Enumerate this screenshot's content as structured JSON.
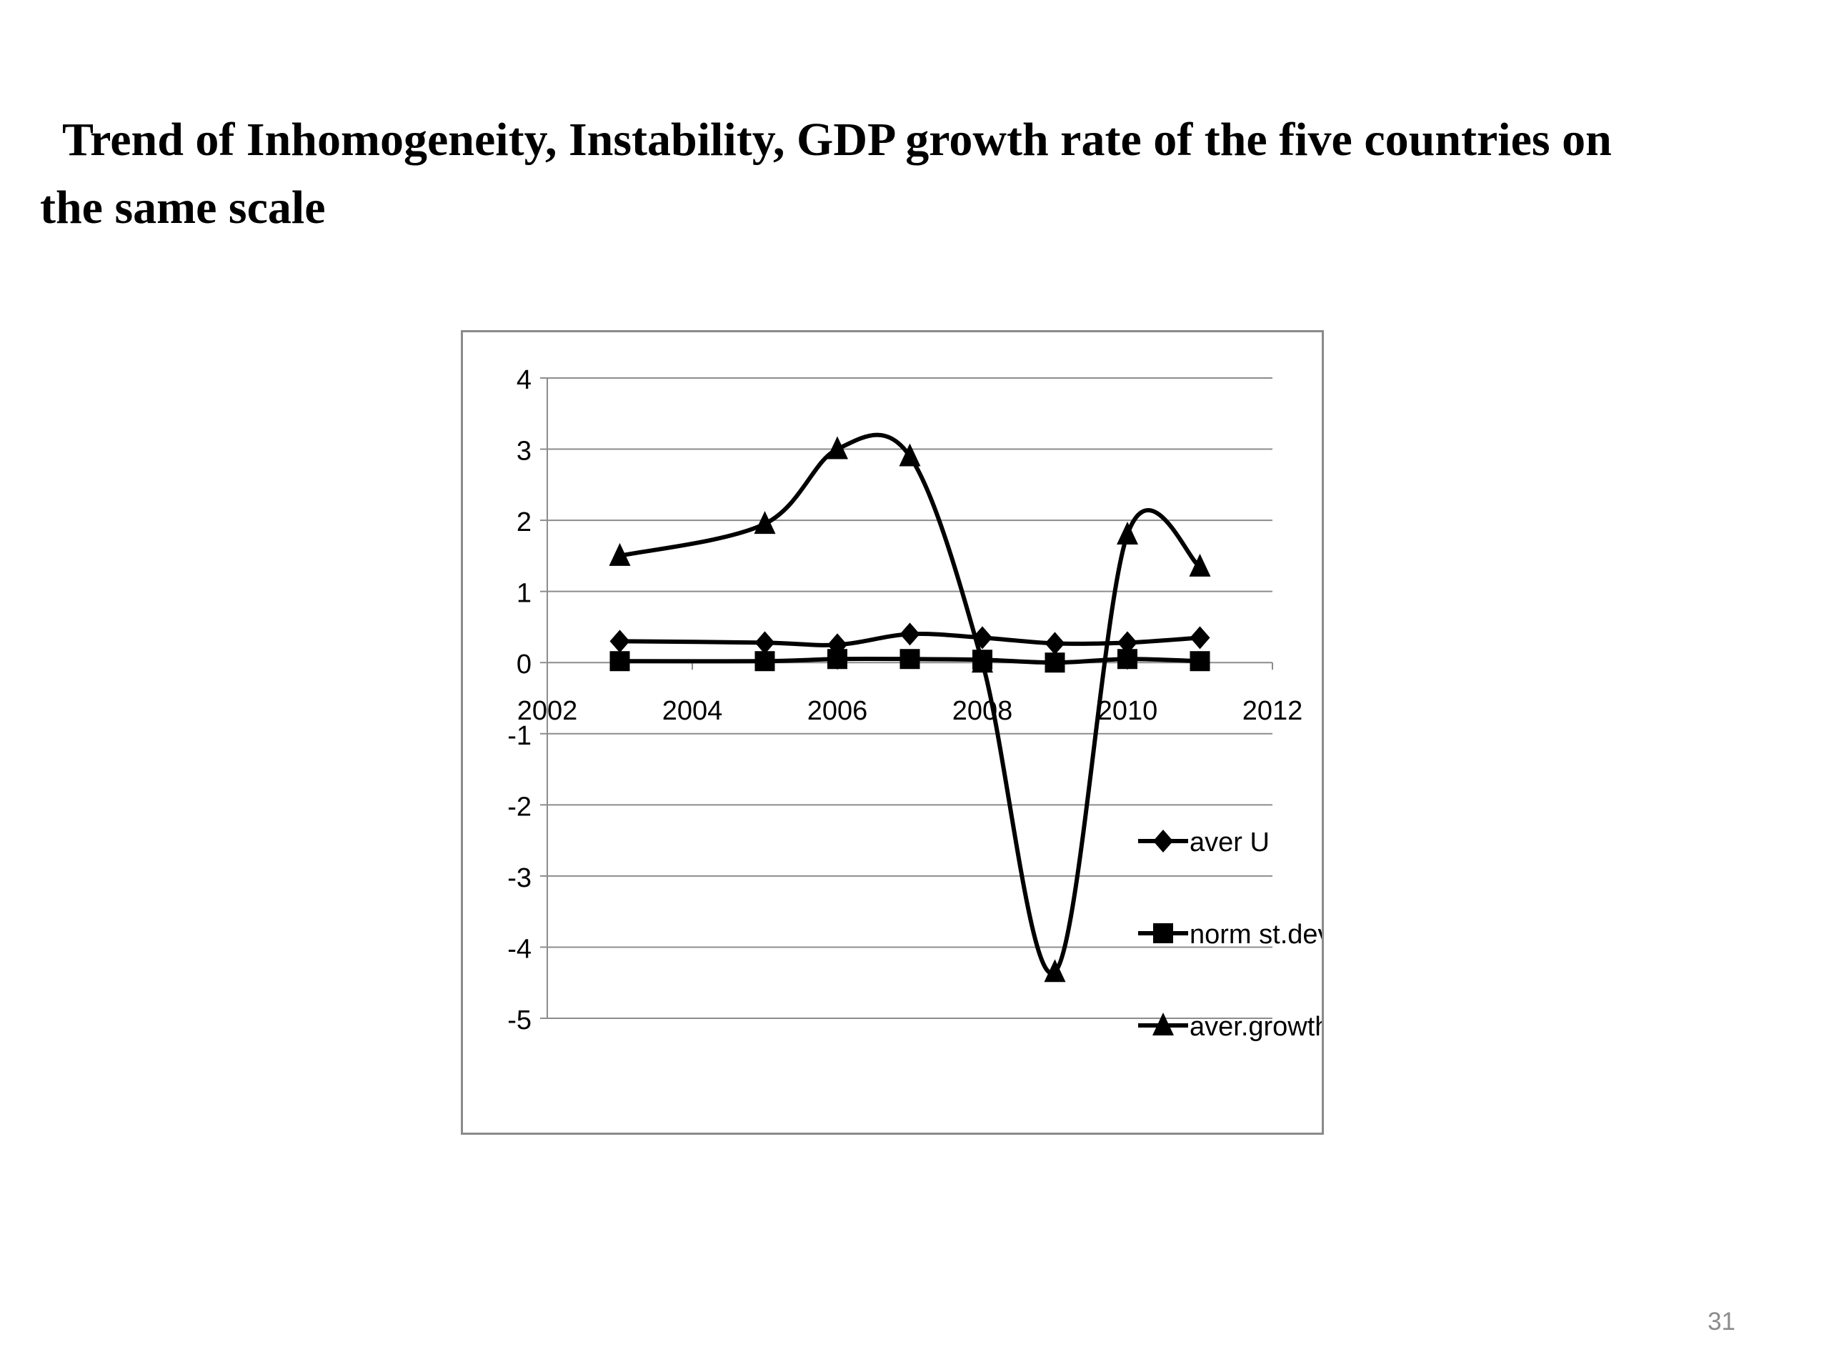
{
  "slide": {
    "title_line1": "Trend of Inhomogeneity, Instability, GDP growth rate of the five countries on",
    "title_line2": "the same scale",
    "page_number": "31"
  },
  "chart_data": {
    "type": "scatter",
    "title": "",
    "xlabel": "",
    "ylabel": "",
    "xlim": [
      2002,
      2012
    ],
    "ylim": [
      -5,
      4
    ],
    "x_ticks": [
      2002,
      2004,
      2006,
      2008,
      2010,
      2012
    ],
    "y_ticks": [
      4,
      3,
      2,
      1,
      0,
      -1,
      -2,
      -3,
      -4,
      -5
    ],
    "grid": true,
    "smoothed_lines": true,
    "legend_position": "right",
    "series": [
      {
        "name": "aver U",
        "marker": "diamond",
        "color": "#000000",
        "x": [
          2003,
          2005,
          2006,
          2007,
          2008,
          2009,
          2010,
          2011
        ],
        "y": [
          0.3,
          0.28,
          0.25,
          0.4,
          0.35,
          0.27,
          0.28,
          0.35
        ]
      },
      {
        "name": "norm st.dev.",
        "marker": "square",
        "color": "#000000",
        "x": [
          2003,
          2005,
          2006,
          2007,
          2008,
          2009,
          2010,
          2011
        ],
        "y": [
          0.02,
          0.02,
          0.05,
          0.05,
          0.04,
          0.0,
          0.05,
          0.02
        ]
      },
      {
        "name": "aver.growth",
        "marker": "triangle",
        "color": "#000000",
        "x": [
          2003,
          2005,
          2006,
          2007,
          2008,
          2009,
          2010,
          2011
        ],
        "y": [
          1.5,
          1.95,
          3.0,
          2.9,
          0.0,
          -4.35,
          1.8,
          1.35
        ]
      }
    ]
  }
}
